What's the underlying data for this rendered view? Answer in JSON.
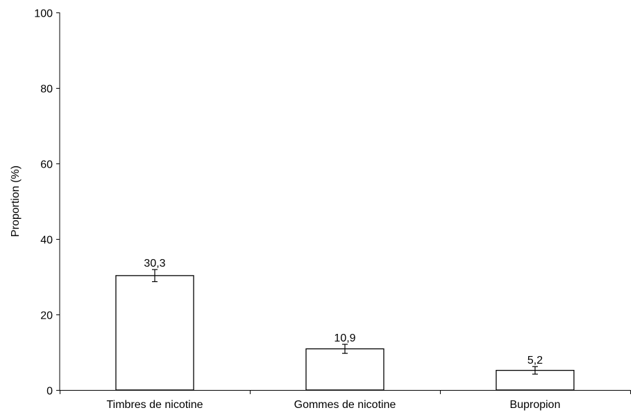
{
  "chart_data": {
    "type": "bar",
    "categories": [
      "Timbres de nicotine",
      "Gommes de nicotine",
      "Bupropion"
    ],
    "values": [
      30.3,
      10.9,
      5.2
    ],
    "data_labels": [
      "30,3",
      "10,9",
      "5,2"
    ],
    "error_bars": [
      {
        "low": 28.7,
        "high": 31.9
      },
      {
        "low": 9.7,
        "high": 12.1
      },
      {
        "low": 4.2,
        "high": 6.2
      }
    ],
    "ylabel": "Proportion (%)",
    "xlabel": "",
    "ylim": [
      0,
      100
    ],
    "yticks": [
      0,
      20,
      40,
      60,
      80,
      100
    ],
    "grid": false,
    "legend": "none",
    "colors": {
      "bar_fill": "#ffffff",
      "bar_stroke": "#000000",
      "axis": "#000000",
      "text": "#000000"
    }
  }
}
